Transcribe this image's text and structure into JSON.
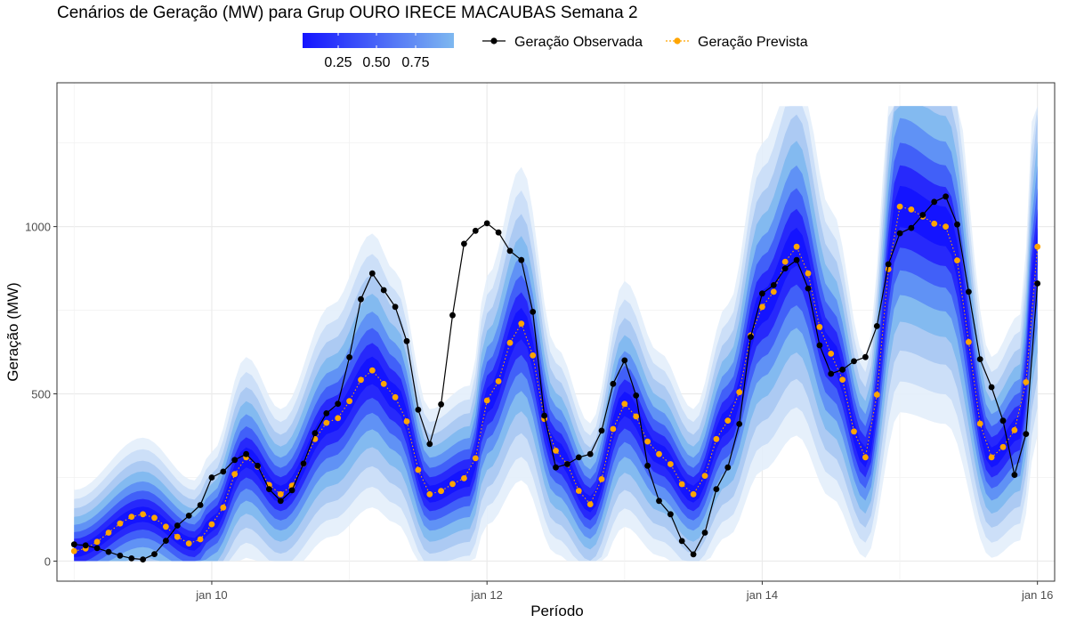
{
  "title": "Cenários de Geração (MW) para Grup OURO IRECE MACAUBAS Semana 2",
  "legend": {
    "colorbar_ticks": [
      "0.25",
      "0.50",
      "0.75"
    ],
    "observed_label": "Geração Observada",
    "forecast_label": "Geração Prevista"
  },
  "colors": {
    "observed": "#000000",
    "forecast": "#FFA500",
    "band_low": "#1414FF",
    "band_high": "#7EB8F0",
    "grid": "#EBEBEB",
    "panel_border": "#333333"
  },
  "chart_data": {
    "type": "line",
    "title": "Cenários de Geração (MW) para Grup OURO IRECE MACAUBAS Semana 2",
    "xlabel": "Período",
    "ylabel": "Geração (MW)",
    "x_tick_labels": [
      "jan 10",
      "jan 12",
      "jan 14",
      "jan 16"
    ],
    "y_ticks": [
      0,
      500,
      1000
    ],
    "y_tick_labels": [
      "0",
      "500",
      "1000"
    ],
    "ylim": [
      -60,
      1430
    ],
    "x_range": [
      "2025-01-08T21:00",
      "2025-01-16T03:00"
    ],
    "grid": true,
    "legend_position": "top",
    "series": [
      {
        "name": "Geração Observada",
        "color": "#000000",
        "x": [
          "2025-01-09T00:00",
          "2025-01-09T12:00",
          "2025-01-09T21:00",
          "2025-01-10T00:00",
          "2025-01-10T06:00",
          "2025-01-10T12:00",
          "2025-01-10T21:00",
          "2025-01-11T04:00",
          "2025-01-11T08:00",
          "2025-01-11T14:00",
          "2025-01-11T21:00",
          "2025-01-12T00:00",
          "2025-01-12T06:00",
          "2025-01-12T12:00",
          "2025-01-12T18:00",
          "2025-01-13T00:00",
          "2025-01-13T06:00",
          "2025-01-13T12:00",
          "2025-01-13T18:00",
          "2025-01-14T00:00",
          "2025-01-14T06:00",
          "2025-01-14T12:00",
          "2025-01-14T18:00",
          "2025-01-15T00:00",
          "2025-01-15T08:00",
          "2025-01-15T16:00",
          "2025-01-15T21:00",
          "2025-01-16T00:00"
        ],
        "y": [
          50,
          5,
          140,
          250,
          320,
          180,
          450,
          860,
          760,
          350,
          980,
          1010,
          900,
          280,
          320,
          600,
          180,
          20,
          280,
          800,
          900,
          560,
          610,
          980,
          1090,
          520,
          230,
          830
        ]
      },
      {
        "name": "Geração Prevista",
        "color": "#FFA500",
        "x": [
          "2025-01-09T00:00",
          "2025-01-09T12:00",
          "2025-01-09T21:00",
          "2025-01-10T00:00",
          "2025-01-10T06:00",
          "2025-01-10T12:00",
          "2025-01-10T21:00",
          "2025-01-11T04:00",
          "2025-01-11T08:00",
          "2025-01-11T14:00",
          "2025-01-11T21:00",
          "2025-01-12T00:00",
          "2025-01-12T06:00",
          "2025-01-12T12:00",
          "2025-01-12T18:00",
          "2025-01-13T00:00",
          "2025-01-13T06:00",
          "2025-01-13T12:00",
          "2025-01-13T18:00",
          "2025-01-14T00:00",
          "2025-01-14T06:00",
          "2025-01-14T12:00",
          "2025-01-14T18:00",
          "2025-01-15T00:00",
          "2025-01-15T08:00",
          "2025-01-15T16:00",
          "2025-01-15T21:00",
          "2025-01-16T00:00"
        ],
        "y": [
          30,
          140,
          50,
          110,
          310,
          200,
          420,
          570,
          490,
          200,
          250,
          480,
          710,
          330,
          170,
          470,
          320,
          200,
          420,
          760,
          940,
          620,
          310,
          1060,
          1000,
          310,
          400,
          940
        ]
      }
    ]
  }
}
